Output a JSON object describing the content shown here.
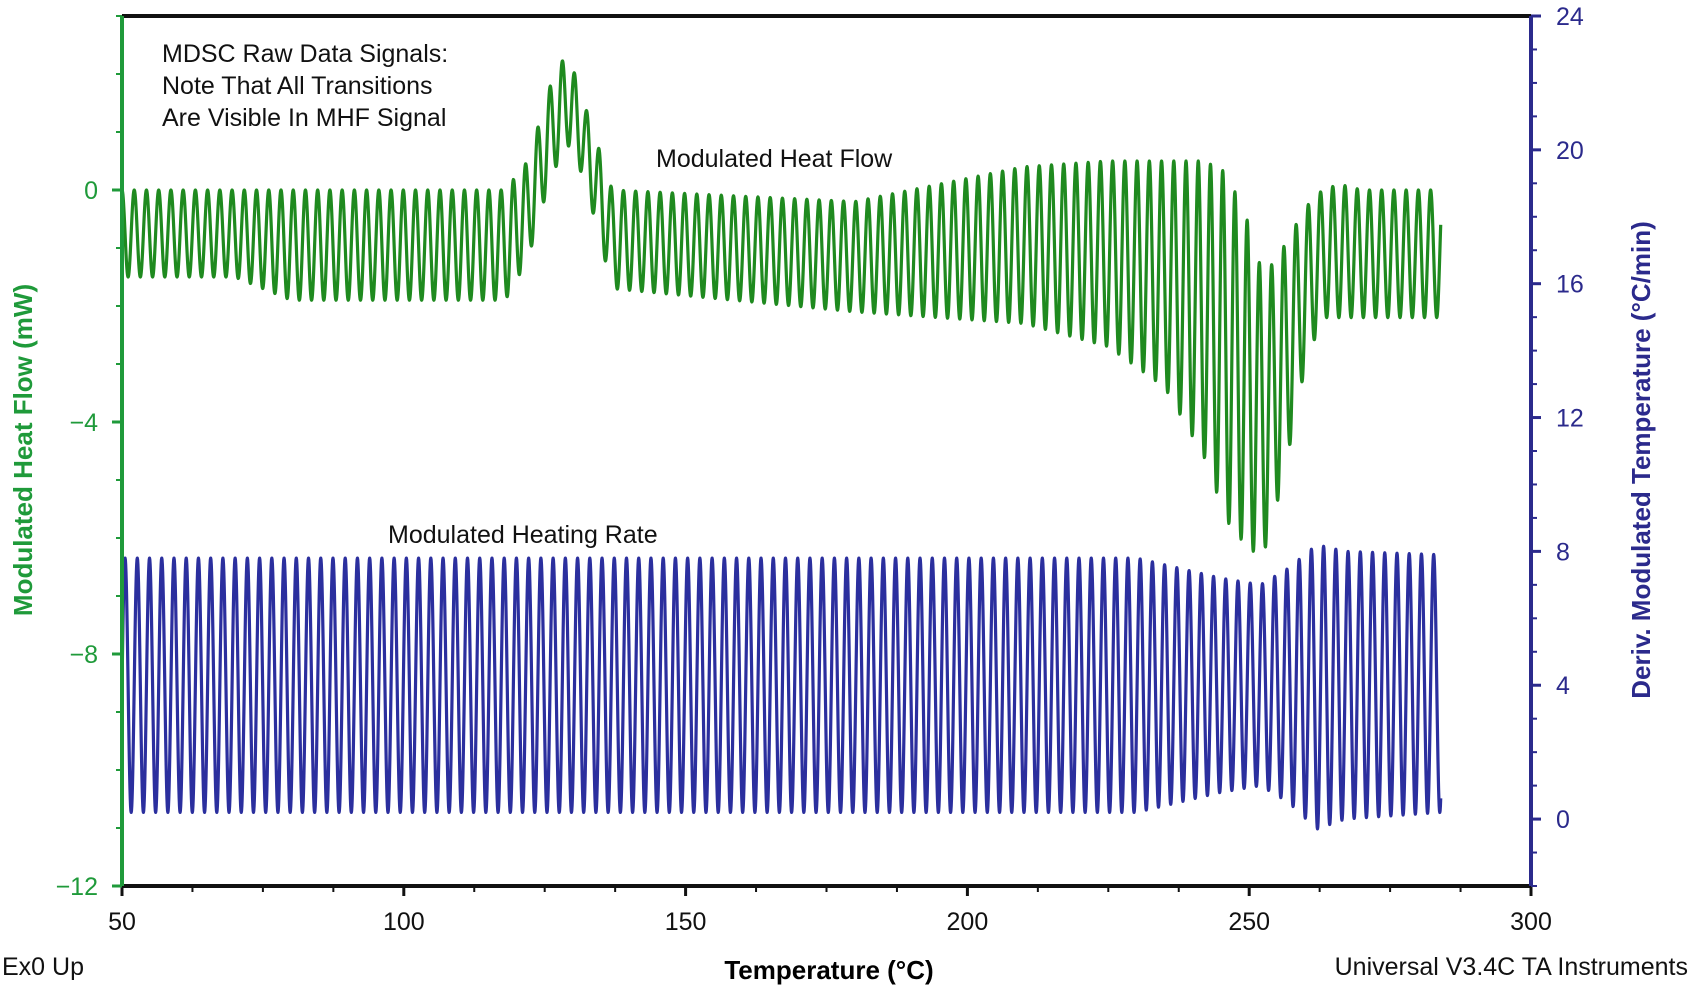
{
  "chart_data": {
    "type": "line",
    "title": "",
    "annotation_lines": [
      "MDSC Raw Data Signals:",
      "Note That All Transitions",
      "Are Visible In MHF Signal"
    ],
    "xlabel": "Temperature (°C)",
    "ylabel_left": "Modulated Heat Flow (mW)",
    "ylabel_right": "Deriv. Modulated Temperature (°C/min)",
    "xlim": [
      50,
      300
    ],
    "ylim_left": [
      -12,
      3
    ],
    "ylim_right": [
      -2,
      24
    ],
    "x_ticks": [
      50,
      100,
      150,
      200,
      250,
      300
    ],
    "y_left_ticks": [
      0,
      -4,
      -8,
      -12
    ],
    "y_right_ticks": [
      24,
      20,
      16,
      12,
      8,
      4,
      0
    ],
    "x_tick_labels": [
      "50",
      "100",
      "150",
      "200",
      "250",
      "300"
    ],
    "y_left_tick_labels": [
      "0",
      "−4",
      "−8",
      "−12"
    ],
    "y_right_tick_labels": [
      "24",
      "20",
      "16",
      "12",
      "8",
      "4",
      "0"
    ],
    "grid": false,
    "modulation_period_c": 2.17,
    "series": [
      {
        "name": "Modulated Heat Flow",
        "axis": "left",
        "color": "#1f8a1f",
        "x_range": [
          50,
          284
        ],
        "envelope": {
          "x": [
            50,
            70,
            80,
            118,
            122,
            126,
            129,
            132,
            137,
            180,
            210,
            225,
            235,
            242,
            246,
            250,
            252.5,
            256,
            260,
            263,
            266,
            270,
            284
          ],
          "upper": [
            0.0,
            0.0,
            0.0,
            0.0,
            0.5,
            1.8,
            2.4,
            1.5,
            0.0,
            -0.2,
            0.4,
            0.5,
            0.5,
            0.5,
            0.3,
            -0.6,
            -1.5,
            -1.0,
            -0.3,
            0.0,
            0.1,
            0.0,
            0.0
          ],
          "lower": [
            -1.5,
            -1.5,
            -1.9,
            -1.9,
            -1.2,
            0.2,
            0.8,
            0.2,
            -1.7,
            -2.1,
            -2.3,
            -2.7,
            -3.4,
            -4.6,
            -5.7,
            -6.2,
            -6.3,
            -5.0,
            -3.0,
            -2.2,
            -2.2,
            -2.2,
            -2.2
          ]
        }
      },
      {
        "name": "Modulated Heating Rate",
        "axis": "right",
        "color": "#2b2f9e",
        "x_range": [
          50,
          284
        ],
        "envelope": {
          "x": [
            50,
            150,
            230,
            245,
            252,
            257,
            262,
            267,
            284
          ],
          "upper": [
            7.8,
            7.8,
            7.8,
            7.2,
            7.0,
            7.5,
            8.2,
            8.0,
            7.9
          ],
          "lower": [
            0.2,
            0.2,
            0.2,
            0.8,
            1.0,
            0.5,
            -0.3,
            0.0,
            0.2
          ]
        }
      }
    ]
  },
  "footer": {
    "left": "Ex0 Up",
    "right": "Universal V3.4C TA Instruments"
  },
  "colors": {
    "left_axis": "#1f9a3a",
    "right_axis": "#2b2a8c",
    "frame": "#111111"
  }
}
